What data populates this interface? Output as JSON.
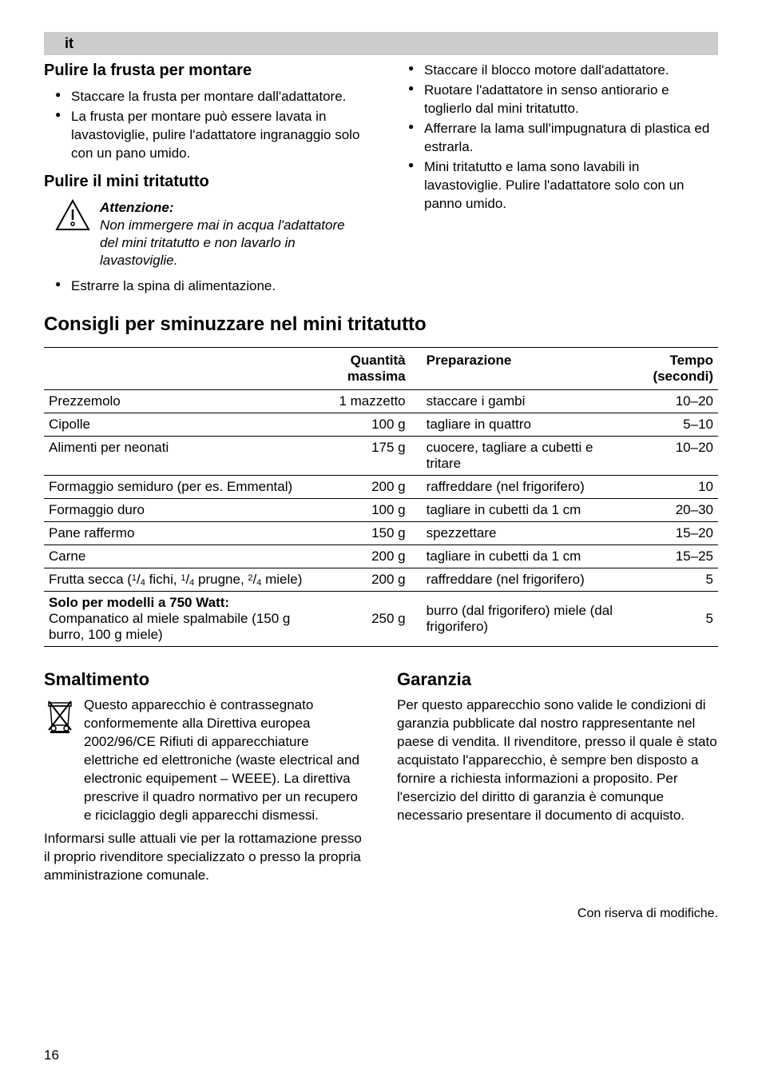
{
  "lang_badge": "it",
  "left": {
    "h1": "Pulire la frusta per montare",
    "bullets1": [
      "Staccare la frusta per montare dall'adattatore.",
      "La frusta per montare può essere lavata in lavastoviglie, pulire l'adattatore ingra­naggio solo con un pano umido."
    ],
    "h2": "Pulire il mini tritatutto",
    "warning_title": "Attenzione:",
    "warning_body": "Non immergere mai in acqua l'adattatore del mini tritatutto e non lavarlo in lavastoviglie.",
    "bullets2": [
      "Estrarre la spina di alimentazione."
    ]
  },
  "right": {
    "bullets": [
      "Staccare il blocco motore dall'adattatore.",
      "Ruotare l'adattatore in senso antiorario e toglierlo dal mini tritatutto.",
      "Afferrare la lama sull'impugnatura di plastica ed estrarla.",
      "Mini tritatutto e lama sono lavabili in lavastoviglie. Pulire l'adattatore solo con un panno umido."
    ]
  },
  "table_title": "Consigli per sminuzzare nel mini tritatutto",
  "table": {
    "headers": {
      "item": "",
      "qty": "Quantità massima",
      "prep": "Preparazione",
      "time": "Tempo (secondi)"
    },
    "rows": [
      {
        "item": "Prezzemolo",
        "qty": "1 mazzetto",
        "prep": "staccare i gambi",
        "time": "10–20"
      },
      {
        "item": "Cipolle",
        "qty": "100 g",
        "prep": "tagliare in quattro",
        "time": "5–10"
      },
      {
        "item": "Alimenti per neonati",
        "qty": "175 g",
        "prep": "cuocere, tagliare a cubetti e tritare",
        "time": "10–20"
      },
      {
        "item": "Formaggio semiduro (per es. Emmental)",
        "qty": "200 g",
        "prep": "raffreddare (nel frigorifero)",
        "time": "10"
      },
      {
        "item": "Formaggio duro",
        "qty": "100 g",
        "prep": "tagliare in cubetti da 1 cm",
        "time": "20–30"
      },
      {
        "item": "Pane raffermo",
        "qty": "150 g",
        "prep": "spezzettare",
        "time": "15–20"
      },
      {
        "item": "Carne",
        "qty": "200 g",
        "prep": "tagliare in cubetti da 1 cm",
        "time": "15–25"
      }
    ],
    "dried_fruit": {
      "label_pre": "Frutta secca (",
      "items": [
        [
          "1",
          "4",
          " fichi, "
        ],
        [
          "1",
          "4",
          " prugne, "
        ],
        [
          "2",
          "4",
          " miele)"
        ]
      ],
      "qty": "200 g",
      "prep": "raffreddare (nel frigorifero)",
      "time": "5"
    },
    "last_row": {
      "title": "Solo per modelli a 750 Watt:",
      "sub": "Companatico al miele spalmabile (150 g burro, 100 g miele)",
      "qty": "250 g",
      "prep": "burro (dal frigorifero) miele (dal frigorifero)",
      "time": "5"
    }
  },
  "disposal": {
    "title": "Smaltimento",
    "para1": "Questo apparecchio è contrassegnato conformemente alla Direttiva europea 2002/96/CE Rifiuti di apparecchiature elettriche ed elettroniche (waste electrical and electronic equipement – WEEE). La direttiva prescrive il quadro normativo per un recupero e riciclaggio degli apparecchi dismessi.",
    "para2": "Informarsi sulle attuali vie per la rottamazione presso il proprio rivenditore specializzato o presso la propria amministrazione comunale."
  },
  "warranty": {
    "title": "Garanzia",
    "body": "Per questo apparecchio sono valide le condi­zioni di garanzia pubblicate dal nostro rappresentante nel paese di vendita. Il rivenditore, presso il quale è stato acquistato l'apparecchio, è sempre ben disposto a fornire a richiesta informazioni a proposito. Per l'esercizio del diritto di garanzia è comunque necessario presentare il documento di acquisto."
  },
  "footer_note": "Con riserva di modifiche.",
  "page_number": "16",
  "colors": {
    "badge_bg": "#cccccc",
    "text": "#000000",
    "bg": "#ffffff"
  }
}
